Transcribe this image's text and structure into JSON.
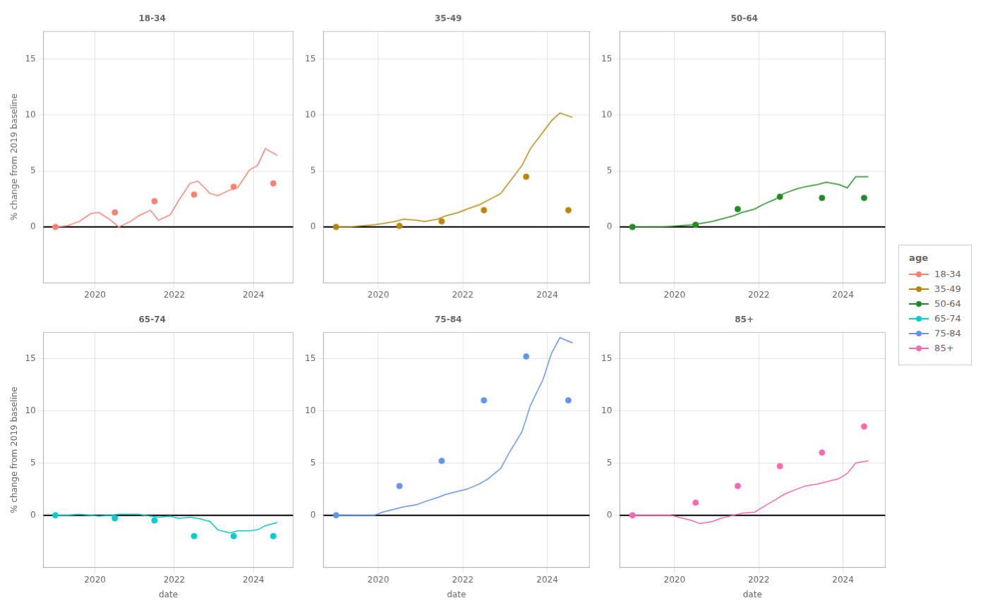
{
  "chart_data": [
    {
      "type": "line",
      "title": "18-34",
      "ylabel": "% change from 2019 baseline",
      "xlim": [
        2018.7,
        2025.0
      ],
      "xticks": [
        2020,
        2022,
        2024
      ],
      "ylim": [
        -5,
        17.5
      ],
      "yticks": [
        0,
        5,
        10,
        15
      ],
      "grid": true,
      "hline": 0,
      "series": [
        {
          "name": "18-34",
          "type": "line",
          "color": "#FA8072",
          "x": [
            2019.0,
            2019.3,
            2019.6,
            2019.9,
            2020.1,
            2020.4,
            2020.6,
            2020.9,
            2021.1,
            2021.4,
            2021.6,
            2021.9,
            2022.1,
            2022.4,
            2022.6,
            2022.9,
            2023.1,
            2023.4,
            2023.6,
            2023.9,
            2024.1,
            2024.3,
            2024.6
          ],
          "values": [
            0.0,
            0.1,
            0.5,
            1.2,
            1.3,
            0.6,
            0.0,
            0.5,
            1.0,
            1.5,
            0.6,
            1.1,
            2.3,
            3.9,
            4.1,
            3.0,
            2.8,
            3.3,
            3.5,
            5.1,
            5.5,
            7.0,
            6.4
          ]
        },
        {
          "type": "scatter",
          "color": "#FA8072",
          "x": [
            2019.0,
            2020.5,
            2021.5,
            2022.5,
            2023.5,
            2024.5
          ],
          "values": [
            0.0,
            1.3,
            2.3,
            2.9,
            3.6,
            3.9
          ]
        }
      ]
    },
    {
      "type": "line",
      "title": "35-49",
      "xlim": [
        2018.7,
        2025.0
      ],
      "xticks": [
        2020,
        2022,
        2024
      ],
      "ylim": [
        -5,
        17.5
      ],
      "yticks": [
        0,
        5,
        10,
        15
      ],
      "grid": true,
      "hline": 0,
      "series": [
        {
          "name": "35-49",
          "type": "line",
          "color": "#B8860B",
          "x": [
            2019.0,
            2019.3,
            2019.6,
            2019.9,
            2020.1,
            2020.4,
            2020.6,
            2020.9,
            2021.1,
            2021.4,
            2021.6,
            2021.9,
            2022.1,
            2022.4,
            2022.6,
            2022.9,
            2023.1,
            2023.4,
            2023.6,
            2023.9,
            2024.1,
            2024.3,
            2024.6
          ],
          "values": [
            0.0,
            0.0,
            0.1,
            0.2,
            0.3,
            0.5,
            0.7,
            0.6,
            0.5,
            0.7,
            1.0,
            1.3,
            1.6,
            2.0,
            2.4,
            3.0,
            4.0,
            5.5,
            7.0,
            8.5,
            9.5,
            10.2,
            9.8
          ]
        },
        {
          "type": "scatter",
          "color": "#B8860B",
          "x": [
            2019.0,
            2020.5,
            2021.5,
            2022.5,
            2023.5,
            2024.5
          ],
          "values": [
            0.0,
            0.1,
            0.5,
            1.5,
            4.5,
            1.5
          ]
        }
      ]
    },
    {
      "type": "line",
      "title": "50-64",
      "xlim": [
        2018.7,
        2025.0
      ],
      "xticks": [
        2020,
        2022,
        2024
      ],
      "ylim": [
        -5,
        17.5
      ],
      "yticks": [
        0,
        5,
        10,
        15
      ],
      "grid": true,
      "hline": 0,
      "series": [
        {
          "name": "50-64",
          "type": "line",
          "color": "#228B22",
          "x": [
            2019.0,
            2019.3,
            2019.6,
            2019.9,
            2020.1,
            2020.4,
            2020.6,
            2020.9,
            2021.1,
            2021.4,
            2021.6,
            2021.9,
            2022.1,
            2022.4,
            2022.6,
            2022.9,
            2023.1,
            2023.4,
            2023.6,
            2023.9,
            2024.1,
            2024.3,
            2024.6
          ],
          "values": [
            0.0,
            0.0,
            0.0,
            0.05,
            0.1,
            0.2,
            0.3,
            0.5,
            0.7,
            1.0,
            1.3,
            1.6,
            2.0,
            2.5,
            3.0,
            3.4,
            3.6,
            3.8,
            4.0,
            3.8,
            3.5,
            4.5,
            4.5
          ]
        },
        {
          "type": "scatter",
          "color": "#228B22",
          "x": [
            2019.0,
            2020.5,
            2021.5,
            2022.5,
            2023.5,
            2024.5
          ],
          "values": [
            0.0,
            0.2,
            1.6,
            2.7,
            2.6,
            2.6
          ]
        }
      ]
    },
    {
      "type": "line",
      "title": "65-74",
      "xlabel": "date",
      "ylabel": "% change from 2019 baseline",
      "xlim": [
        2018.7,
        2025.0
      ],
      "xticks": [
        2020,
        2022,
        2024
      ],
      "ylim": [
        -5,
        17.5
      ],
      "yticks": [
        0,
        5,
        10,
        15
      ],
      "grid": true,
      "hline": 0,
      "series": [
        {
          "name": "65-74",
          "type": "line",
          "color": "#00CED1",
          "x": [
            2019.0,
            2019.3,
            2019.6,
            2019.9,
            2020.1,
            2020.4,
            2020.6,
            2020.9,
            2021.1,
            2021.4,
            2021.6,
            2021.9,
            2022.1,
            2022.4,
            2022.6,
            2022.9,
            2023.1,
            2023.4,
            2023.6,
            2023.9,
            2024.1,
            2024.3,
            2024.6
          ],
          "values": [
            0.0,
            0.0,
            0.1,
            0.0,
            -0.1,
            0.0,
            0.1,
            0.1,
            0.1,
            -0.1,
            -0.2,
            -0.1,
            -0.3,
            -0.2,
            -0.3,
            -0.6,
            -1.4,
            -1.7,
            -1.5,
            -1.5,
            -1.4,
            -1.0,
            -0.7
          ]
        },
        {
          "type": "scatter",
          "color": "#00CED1",
          "x": [
            2019.0,
            2020.5,
            2021.5,
            2022.5,
            2023.5,
            2024.5
          ],
          "values": [
            0.0,
            -0.3,
            -0.5,
            -2.0,
            -2.0,
            -2.0
          ]
        }
      ]
    },
    {
      "type": "line",
      "title": "75-84",
      "xlabel": "date",
      "xlim": [
        2018.7,
        2025.0
      ],
      "xticks": [
        2020,
        2022,
        2024
      ],
      "ylim": [
        -5,
        17.5
      ],
      "yticks": [
        0,
        5,
        10,
        15
      ],
      "grid": true,
      "hline": 0,
      "series": [
        {
          "name": "75-84",
          "type": "line",
          "color": "#6495ED",
          "x": [
            2019.0,
            2019.3,
            2019.6,
            2019.9,
            2020.1,
            2020.4,
            2020.6,
            2020.9,
            2021.1,
            2021.4,
            2021.6,
            2021.9,
            2022.1,
            2022.4,
            2022.6,
            2022.9,
            2023.1,
            2023.4,
            2023.6,
            2023.9,
            2024.1,
            2024.3,
            2024.6
          ],
          "values": [
            0.0,
            0.0,
            0.0,
            0.0,
            0.3,
            0.6,
            0.8,
            1.0,
            1.3,
            1.7,
            2.0,
            2.3,
            2.5,
            3.0,
            3.5,
            4.5,
            6.0,
            8.0,
            10.5,
            13.0,
            15.5,
            17.0,
            16.5
          ]
        },
        {
          "type": "scatter",
          "color": "#6495ED",
          "x": [
            2019.0,
            2020.5,
            2021.5,
            2022.5,
            2023.5,
            2024.5
          ],
          "values": [
            0.0,
            2.8,
            5.2,
            11.0,
            15.2,
            11.0
          ]
        }
      ]
    },
    {
      "type": "line",
      "title": "85+",
      "xlabel": "date",
      "xlim": [
        2018.7,
        2025.0
      ],
      "xticks": [
        2020,
        2022,
        2024
      ],
      "ylim": [
        -5,
        17.5
      ],
      "yticks": [
        0,
        5,
        10,
        15
      ],
      "grid": true,
      "hline": 0,
      "series": [
        {
          "name": "85+",
          "type": "line",
          "color": "#FF69B4",
          "x": [
            2019.0,
            2019.3,
            2019.6,
            2019.9,
            2020.1,
            2020.4,
            2020.6,
            2020.9,
            2021.1,
            2021.4,
            2021.6,
            2021.9,
            2022.1,
            2022.4,
            2022.6,
            2022.9,
            2023.1,
            2023.4,
            2023.6,
            2023.9,
            2024.1,
            2024.3,
            2024.6
          ],
          "values": [
            0.0,
            0.0,
            0.0,
            0.0,
            -0.2,
            -0.5,
            -0.8,
            -0.6,
            -0.3,
            0.0,
            0.2,
            0.3,
            0.8,
            1.5,
            2.0,
            2.5,
            2.8,
            3.0,
            3.2,
            3.5,
            4.0,
            5.0,
            5.2
          ]
        },
        {
          "type": "scatter",
          "color": "#FF69B4",
          "x": [
            2019.0,
            2020.5,
            2021.5,
            2022.5,
            2023.5,
            2024.5
          ],
          "values": [
            0.0,
            1.2,
            2.8,
            4.7,
            6.0,
            8.5
          ]
        }
      ]
    }
  ],
  "legend": "right",
  "legend_title": "age"
}
